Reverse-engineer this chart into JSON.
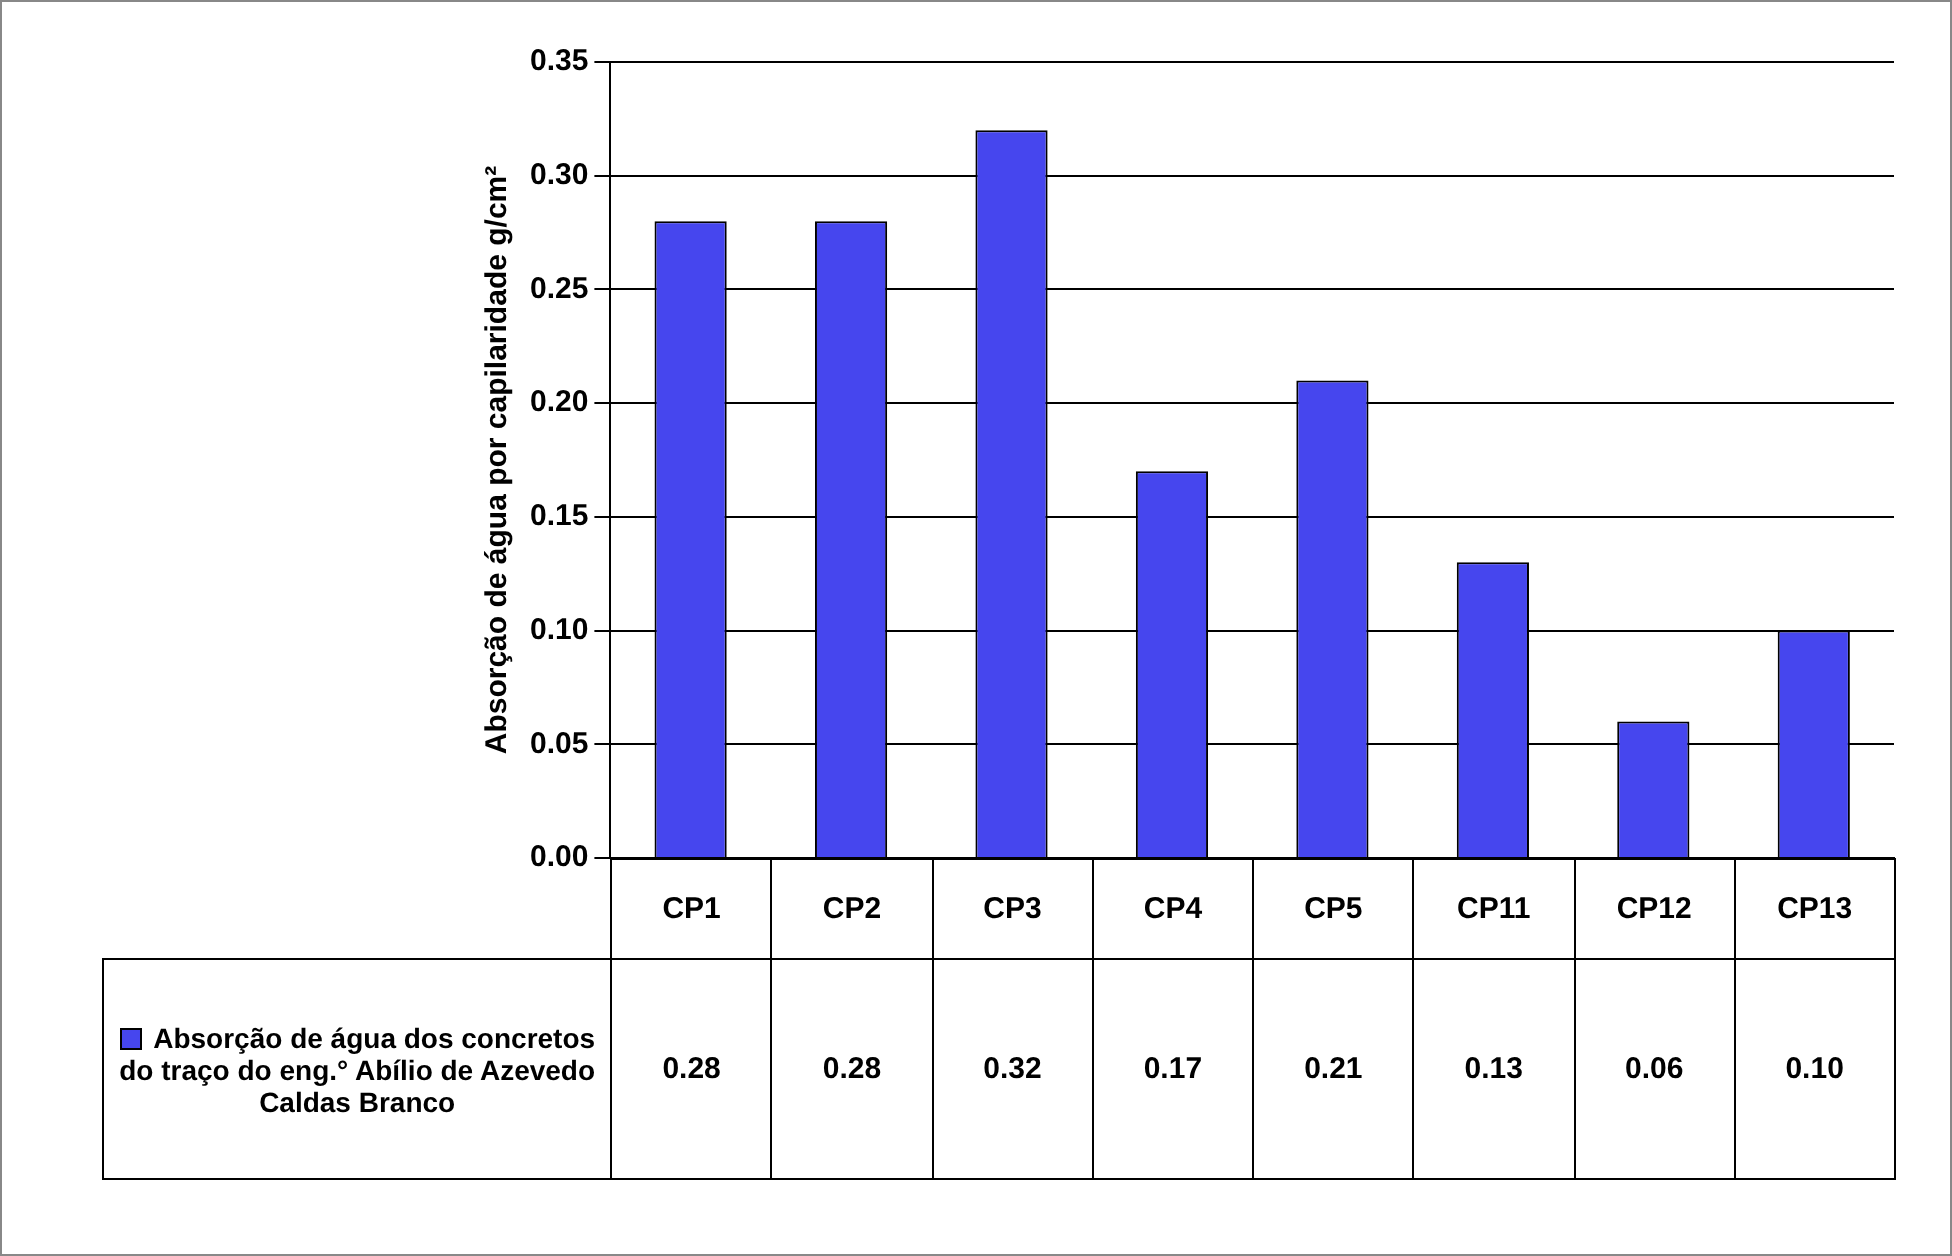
{
  "chart_data": {
    "type": "bar",
    "ylabel": "Absorção de água por capilaridade g/cm²",
    "categories": [
      "CP1",
      "CP2",
      "CP3",
      "CP4",
      "CP5",
      "CP11",
      "CP12",
      "CP13"
    ],
    "series": [
      {
        "name": "Absorção de água dos concretos do traço do eng.° Abílio de Azevedo Caldas Branco",
        "color": "#4646ee",
        "values": [
          0.28,
          0.28,
          0.32,
          0.17,
          0.21,
          0.13,
          0.06,
          0.1
        ]
      }
    ],
    "ylim": [
      0,
      0.35
    ],
    "yticks": [
      {
        "value": 0,
        "label": "0.00"
      },
      {
        "value": 0.05,
        "label": "0.05"
      },
      {
        "value": 0.1,
        "label": "0.10"
      },
      {
        "value": 0.15,
        "label": "0.15"
      },
      {
        "value": 0.2,
        "label": "0.20"
      },
      {
        "value": 0.25,
        "label": "0.25"
      },
      {
        "value": 0.3,
        "label": "0.30"
      },
      {
        "value": 0.35,
        "label": "0.35"
      }
    ],
    "grid": "y",
    "value_labels": [
      "0.28",
      "0.28",
      "0.32",
      "0.17",
      "0.21",
      "0.13",
      "0.06",
      "0.10"
    ]
  }
}
